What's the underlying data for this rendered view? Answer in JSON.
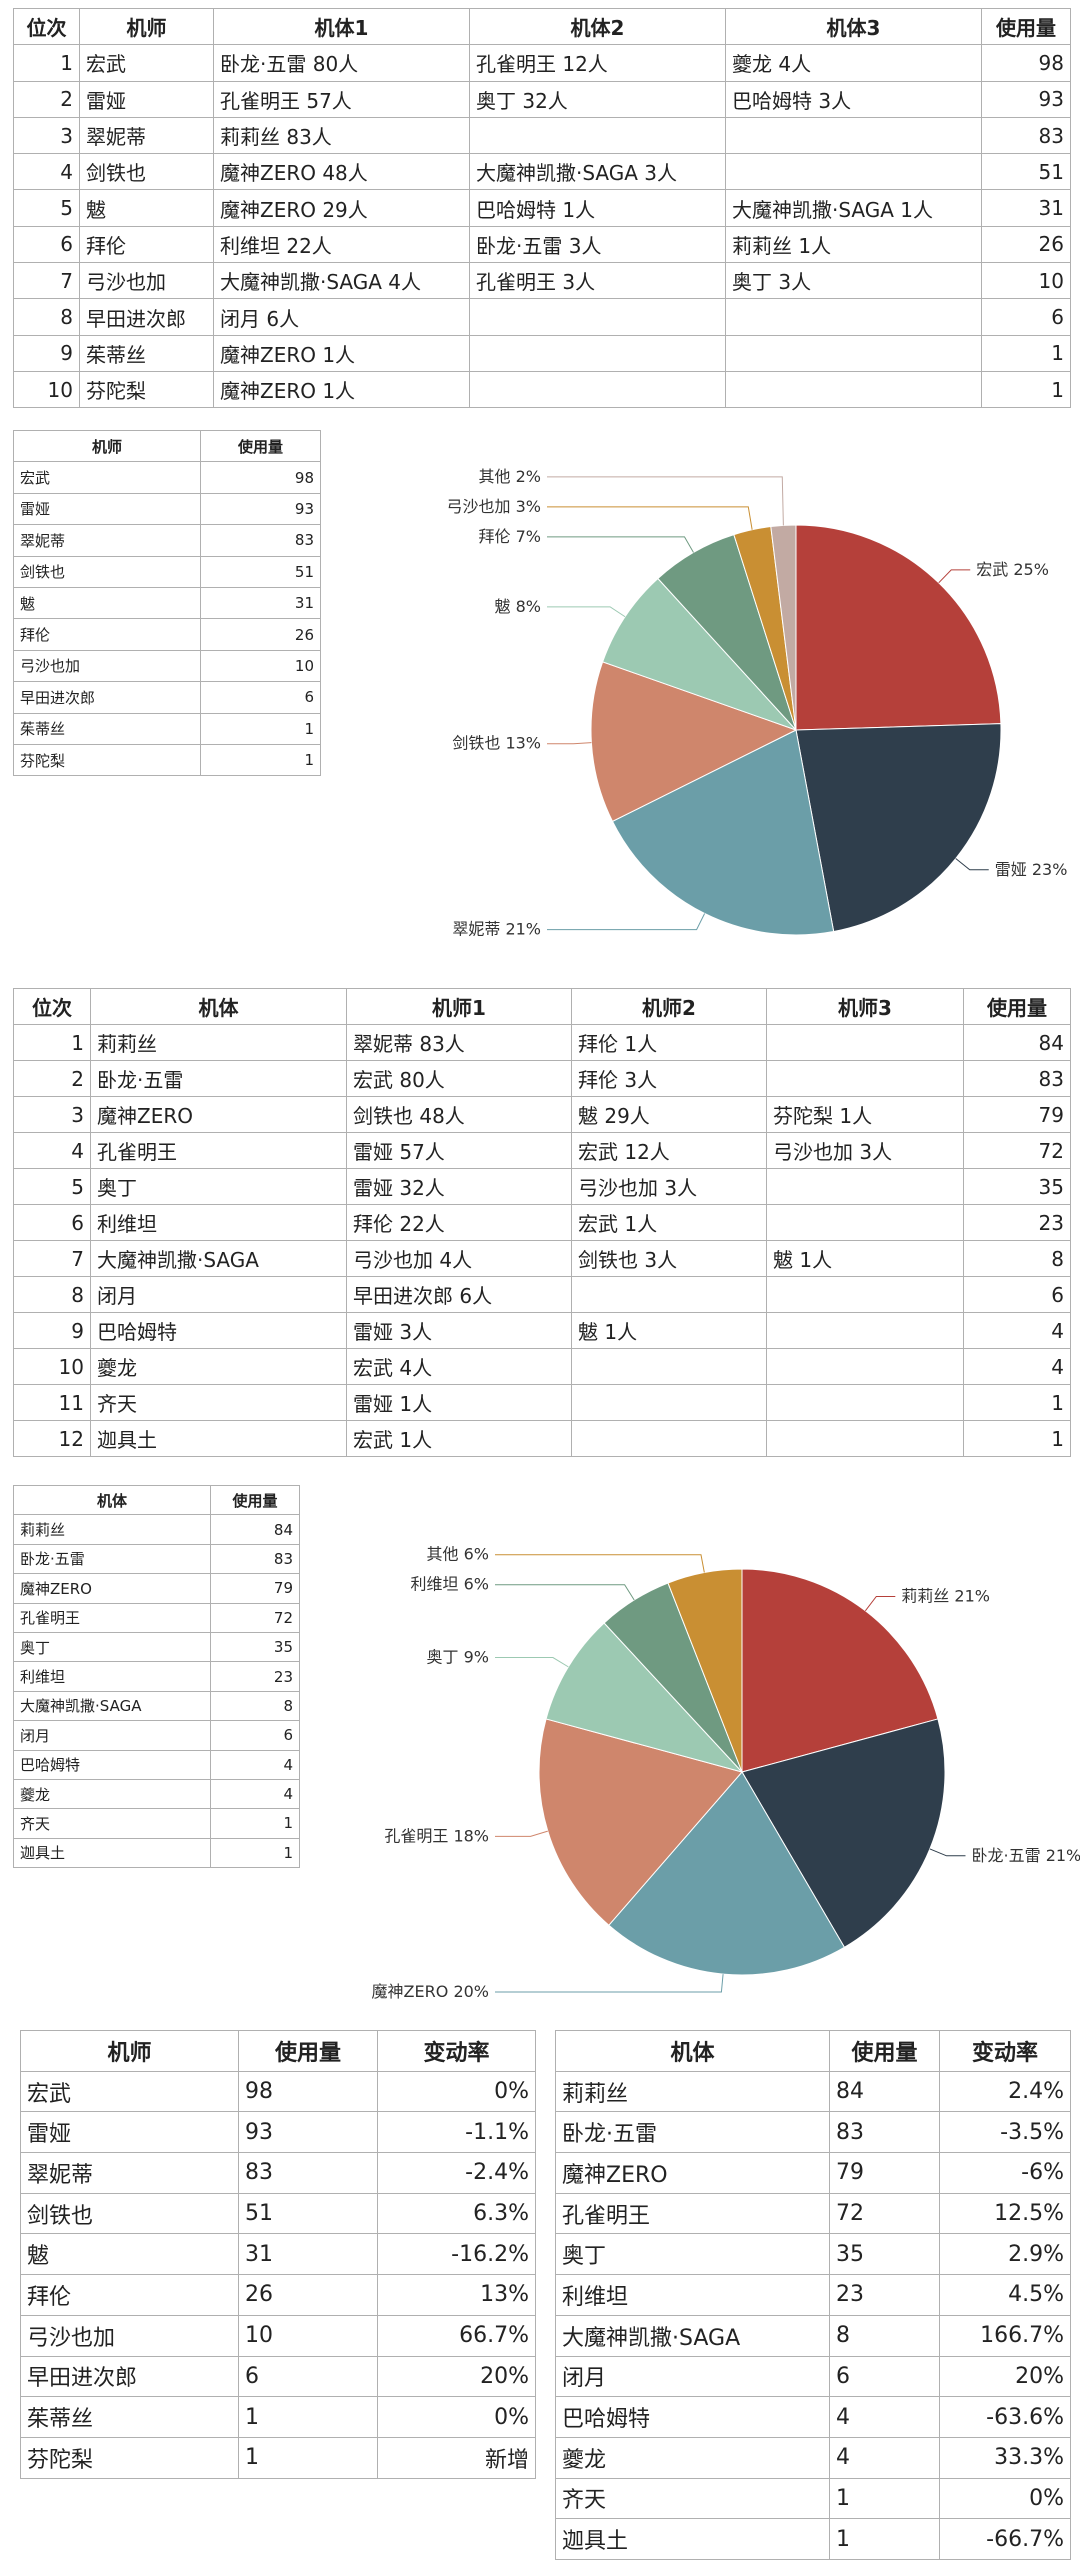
{
  "pilot_usage_ranking": {
    "header": [
      "位次",
      "机师",
      "机体1",
      "机体2",
      "机体3",
      "使用量"
    ],
    "rows": [
      [
        1,
        "宏武",
        "卧龙·五雷 80人",
        "孔雀明王 12人",
        "夔龙 4人",
        98
      ],
      [
        2,
        "雷娅",
        "孔雀明王 57人",
        "奥丁 32人",
        "巴哈姆特 3人",
        93
      ],
      [
        3,
        "翠妮蒂",
        "莉莉丝 83人",
        null,
        null,
        83
      ],
      [
        4,
        "剑铁也",
        "魔神ZERO 48人",
        "大魔神凯撒·SAGA 3人",
        null,
        51
      ],
      [
        5,
        "魃",
        "魔神ZERO 29人",
        "巴哈姆特 1人",
        "大魔神凯撒·SAGA 1人",
        31
      ],
      [
        6,
        "拜伦",
        "利维坦 22人",
        "卧龙·五雷 3人",
        "莉莉丝 1人",
        26
      ],
      [
        7,
        "弓沙也加",
        "大魔神凯撒·SAGA 4人",
        "孔雀明王 3人",
        "奥丁 3人",
        10
      ],
      [
        8,
        "早田进次郎",
        "闭月 6人",
        null,
        null,
        6
      ],
      [
        9,
        "茱蒂丝",
        "魔神ZERO 1人",
        null,
        null,
        1
      ],
      [
        10,
        "芬陀梨",
        "魔神ZERO 1人",
        null,
        null,
        1
      ]
    ]
  },
  "pilot_usage_summary": {
    "header": [
      "机师",
      "使用量"
    ],
    "rows": [
      [
        "宏武",
        98
      ],
      [
        "雷娅",
        93
      ],
      [
        "翠妮蒂",
        83
      ],
      [
        "剑铁也",
        51
      ],
      [
        "魃",
        31
      ],
      [
        "拜伦",
        26
      ],
      [
        "弓沙也加",
        10
      ],
      [
        "早田进次郎",
        6
      ],
      [
        "茱蒂丝",
        1
      ],
      [
        "芬陀梨",
        1
      ]
    ]
  },
  "chart_data": [
    {
      "type": "pie",
      "categories": [
        "宏武",
        "雷娅",
        "翠妮蒂",
        "剑铁也",
        "魃",
        "拜伦",
        "弓沙也加",
        "其他"
      ],
      "values": [
        25,
        23,
        21,
        13,
        8,
        7,
        3,
        2
      ],
      "value_labels": [
        "25%",
        "23%",
        "21%",
        "13%",
        "8%",
        "7%",
        "3%",
        "2%"
      ],
      "colors": [
        "#b5403a",
        "#2f3e4c",
        "#6b9ea8",
        "#cf866c",
        "#9cc9b2",
        "#6f9a81",
        "#c98f33",
        "#c2aaa3"
      ]
    },
    {
      "type": "pie",
      "categories": [
        "莉莉丝",
        "卧龙·五雷",
        "魔神ZERO",
        "孔雀明王",
        "奥丁",
        "利维坦",
        "其他"
      ],
      "values": [
        21,
        21,
        20,
        18,
        9,
        6,
        6
      ],
      "value_labels": [
        "21%",
        "21%",
        "20%",
        "18%",
        "9%",
        "6%",
        "6%"
      ],
      "colors": [
        "#b5403a",
        "#2f3e4c",
        "#6b9ea8",
        "#cf866c",
        "#9cc9b2",
        "#6f9a81",
        "#c98f33"
      ]
    }
  ],
  "mech_usage_ranking": {
    "header": [
      "位次",
      "机体",
      "机师1",
      "机师2",
      "机师3",
      "使用量"
    ],
    "rows": [
      [
        1,
        "莉莉丝",
        "翠妮蒂 83人",
        "拜伦 1人",
        null,
        84
      ],
      [
        2,
        "卧龙·五雷",
        "宏武 80人",
        "拜伦 3人",
        null,
        83
      ],
      [
        3,
        "魔神ZERO",
        "剑铁也 48人",
        "魃 29人",
        "芬陀梨 1人",
        79
      ],
      [
        4,
        "孔雀明王",
        "雷娅 57人",
        "宏武 12人",
        "弓沙也加 3人",
        72
      ],
      [
        5,
        "奥丁",
        "雷娅 32人",
        "弓沙也加 3人",
        null,
        35
      ],
      [
        6,
        "利维坦",
        "拜伦 22人",
        "宏武 1人",
        null,
        23
      ],
      [
        7,
        "大魔神凯撒·SAGA",
        "弓沙也加 4人",
        "剑铁也 3人",
        "魃 1人",
        8
      ],
      [
        8,
        "闭月",
        "早田进次郎 6人",
        null,
        null,
        6
      ],
      [
        9,
        "巴哈姆特",
        "雷娅 3人",
        "魃 1人",
        null,
        4
      ],
      [
        10,
        "夔龙",
        "宏武 4人",
        null,
        null,
        4
      ],
      [
        11,
        "齐天",
        "雷娅 1人",
        null,
        null,
        1
      ],
      [
        12,
        "迦具土",
        "宏武 1人",
        null,
        null,
        1
      ]
    ]
  },
  "mech_usage_summary": {
    "header": [
      "机体",
      "使用量"
    ],
    "rows": [
      [
        "莉莉丝",
        84
      ],
      [
        "卧龙·五雷",
        83
      ],
      [
        "魔神ZERO",
        79
      ],
      [
        "孔雀明王",
        72
      ],
      [
        "奥丁",
        35
      ],
      [
        "利维坦",
        23
      ],
      [
        "大魔神凯撒·SAGA",
        8
      ],
      [
        "闭月",
        6
      ],
      [
        "巴哈姆特",
        4
      ],
      [
        "夔龙",
        4
      ],
      [
        "齐天",
        1
      ],
      [
        "迦具土",
        1
      ]
    ]
  },
  "pilot_change": {
    "header": [
      "机师",
      "使用量",
      "变动率"
    ],
    "rows": [
      [
        "宏武",
        98,
        "0%"
      ],
      [
        "雷娅",
        93,
        "-1.1%"
      ],
      [
        "翠妮蒂",
        83,
        "-2.4%"
      ],
      [
        "剑铁也",
        51,
        "6.3%"
      ],
      [
        "魃",
        31,
        "-16.2%"
      ],
      [
        "拜伦",
        26,
        "13%"
      ],
      [
        "弓沙也加",
        10,
        "66.7%"
      ],
      [
        "早田进次郎",
        6,
        "20%"
      ],
      [
        "茱蒂丝",
        1,
        "0%"
      ],
      [
        "芬陀梨",
        1,
        "新增"
      ]
    ]
  },
  "mech_change": {
    "header": [
      "机体",
      "使用量",
      "变动率"
    ],
    "rows": [
      [
        "莉莉丝",
        84,
        "2.4%"
      ],
      [
        "卧龙·五雷",
        83,
        "-3.5%"
      ],
      [
        "魔神ZERO",
        79,
        "-6%"
      ],
      [
        "孔雀明王",
        72,
        "12.5%"
      ],
      [
        "奥丁",
        35,
        "2.9%"
      ],
      [
        "利维坦",
        23,
        "4.5%"
      ],
      [
        "大魔神凯撒·SAGA",
        8,
        "166.7%"
      ],
      [
        "闭月",
        6,
        "20%"
      ],
      [
        "巴哈姆特",
        4,
        "-63.6%"
      ],
      [
        "夔龙",
        4,
        "33.3%"
      ],
      [
        "齐天",
        1,
        "0%"
      ],
      [
        "迦具土",
        1,
        "-66.7%"
      ]
    ]
  }
}
